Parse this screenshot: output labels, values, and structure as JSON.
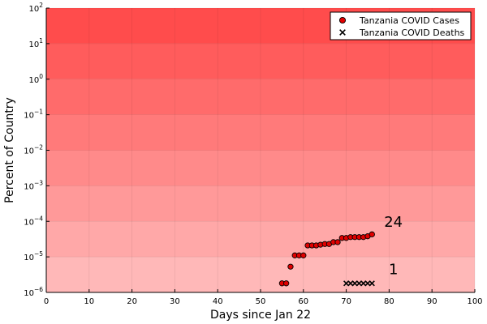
{
  "chart_data": {
    "type": "scatter",
    "title": "",
    "xlabel": "Days since Jan 22",
    "ylabel": "Percent of Country",
    "xlim": [
      0,
      100
    ],
    "ylim_log10": [
      -6,
      2
    ],
    "y_scale": "log",
    "grid": true,
    "legend_position": "top-right",
    "x_ticks": [
      "0",
      "10",
      "20",
      "30",
      "40",
      "50",
      "60",
      "70",
      "80",
      "90",
      "100"
    ],
    "x_tick_values": [
      0,
      10,
      20,
      30,
      40,
      50,
      60,
      70,
      80,
      90,
      100
    ],
    "y_ticks": [
      {
        "base": "10",
        "exp": "−6",
        "value": 1e-06
      },
      {
        "base": "10",
        "exp": "−5",
        "value": 1e-05
      },
      {
        "base": "10",
        "exp": "−4",
        "value": 0.0001
      },
      {
        "base": "10",
        "exp": "−3",
        "value": 0.001
      },
      {
        "base": "10",
        "exp": "−2",
        "value": 0.01
      },
      {
        "base": "10",
        "exp": "−1",
        "value": 0.1
      },
      {
        "base": "10",
        "exp": "0",
        "value": 1
      },
      {
        "base": "10",
        "exp": "1",
        "value": 10
      },
      {
        "base": "10",
        "exp": "2",
        "value": 100
      }
    ],
    "background_bands": {
      "color": "#ff0000",
      "note_levels": [
        1e-06,
        1e-05,
        0.0001,
        0.001,
        0.01,
        0.1,
        1,
        10,
        100
      ]
    },
    "series": [
      {
        "name": "Tanzania COVID Cases",
        "marker": "circle",
        "color": "#e00000",
        "x": [
          55,
          56,
          57,
          58,
          59,
          60,
          61,
          62,
          63,
          64,
          65,
          66,
          67,
          68,
          69,
          70,
          71,
          72,
          73,
          74,
          75,
          76
        ],
        "y": [
          1.8e-06,
          1.8e-06,
          5.3e-06,
          1.1e-05,
          1.1e-05,
          1.1e-05,
          2.1e-05,
          2.1e-05,
          2.1e-05,
          2.2e-05,
          2.3e-05,
          2.3e-05,
          2.6e-05,
          2.6e-05,
          3.4e-05,
          3.4e-05,
          3.6e-05,
          3.6e-05,
          3.6e-05,
          3.6e-05,
          3.8e-05,
          4.3e-05
        ]
      },
      {
        "name": "Tanzania COVID Deaths",
        "marker": "x",
        "color": "#000000",
        "x": [
          70,
          71,
          72,
          73,
          74,
          75,
          76
        ],
        "y": [
          1.8e-06,
          1.8e-06,
          1.8e-06,
          1.8e-06,
          1.8e-06,
          1.8e-06,
          1.8e-06
        ]
      }
    ],
    "annotations": [
      {
        "text": "24",
        "x": 81,
        "y": 7e-05
      },
      {
        "text": "1",
        "x": 81,
        "y": 3.3e-06
      }
    ]
  }
}
